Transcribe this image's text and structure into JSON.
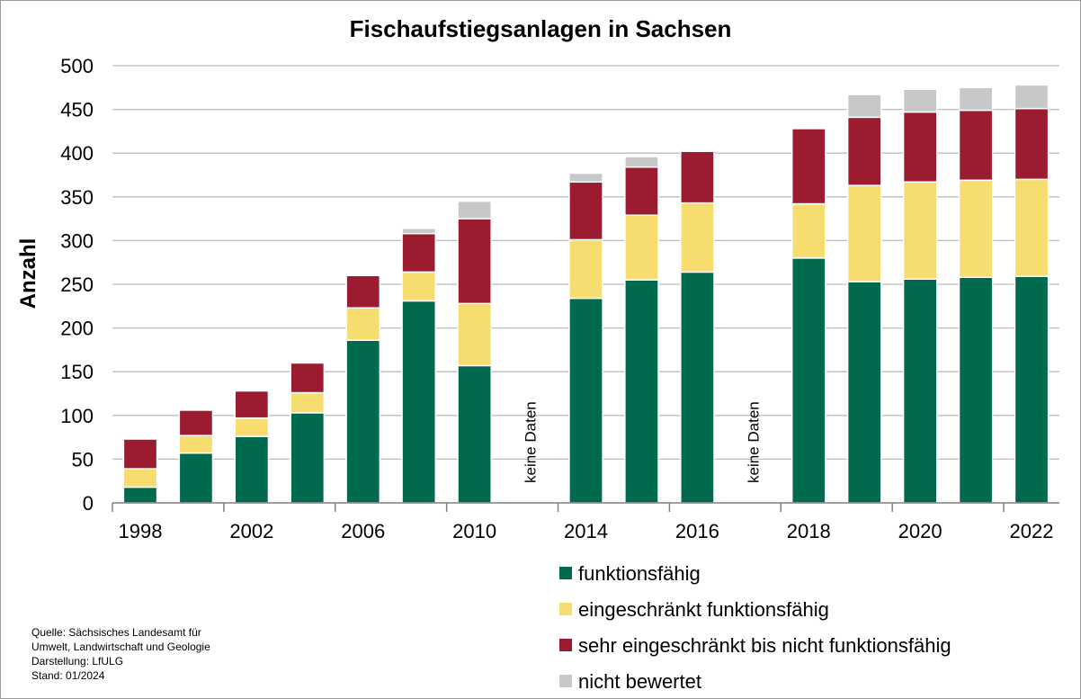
{
  "chart_data": {
    "type": "bar",
    "stacked": true,
    "title": "Fischaufstiegsanlagen in Sachsen",
    "xlabel": "",
    "ylabel": "Anzahl",
    "ylim": [
      0,
      500
    ],
    "yticks": [
      0,
      50,
      100,
      150,
      200,
      250,
      300,
      350,
      400,
      450,
      500
    ],
    "grid": true,
    "legend_position": "bottom-right",
    "categories": [
      "1998",
      "2000",
      "2002",
      "2004",
      "2006",
      "2008",
      "2010",
      "2012",
      "2014",
      "2015",
      "2016",
      "2017",
      "2018",
      "2019",
      "2020",
      "2021",
      "2022"
    ],
    "x_tick_labels": [
      "1998",
      "2002",
      "2006",
      "2010",
      "2014",
      "2016",
      "2018",
      "2020",
      "2022"
    ],
    "series": [
      {
        "name": "funktionsfähig",
        "color": "#006a4e",
        "values": [
          18,
          57,
          76,
          103,
          186,
          231,
          157,
          null,
          234,
          255,
          264,
          null,
          280,
          253,
          256,
          258,
          259
        ]
      },
      {
        "name": "eingeschränkt funktionsfähig",
        "color": "#f7dc6f",
        "values": [
          21,
          20,
          21,
          23,
          37,
          33,
          71,
          null,
          67,
          74,
          79,
          null,
          62,
          110,
          111,
          111,
          111
        ]
      },
      {
        "name": "sehr eingeschränkt bis nicht funktionsfähig",
        "color": "#9b1c31",
        "values": [
          34,
          29,
          31,
          34,
          37,
          44,
          97,
          null,
          66,
          55,
          59,
          null,
          86,
          78,
          80,
          80,
          81
        ]
      },
      {
        "name": "nicht bewertet",
        "color": "#c8c8c8",
        "values": [
          0,
          0,
          0,
          0,
          0,
          6,
          20,
          null,
          10,
          12,
          0,
          null,
          0,
          26,
          26,
          26,
          27
        ]
      }
    ],
    "annotations": [
      {
        "category": "2012",
        "text": "keine Daten"
      },
      {
        "category": "2017",
        "text": "keine Daten"
      }
    ]
  },
  "source_note": [
    "Quelle: Sächsisches Landesamt für",
    "Umwelt, Landwirtschaft und Geologie",
    "Darstellung: LfULG",
    "Stand: 01/2024"
  ]
}
